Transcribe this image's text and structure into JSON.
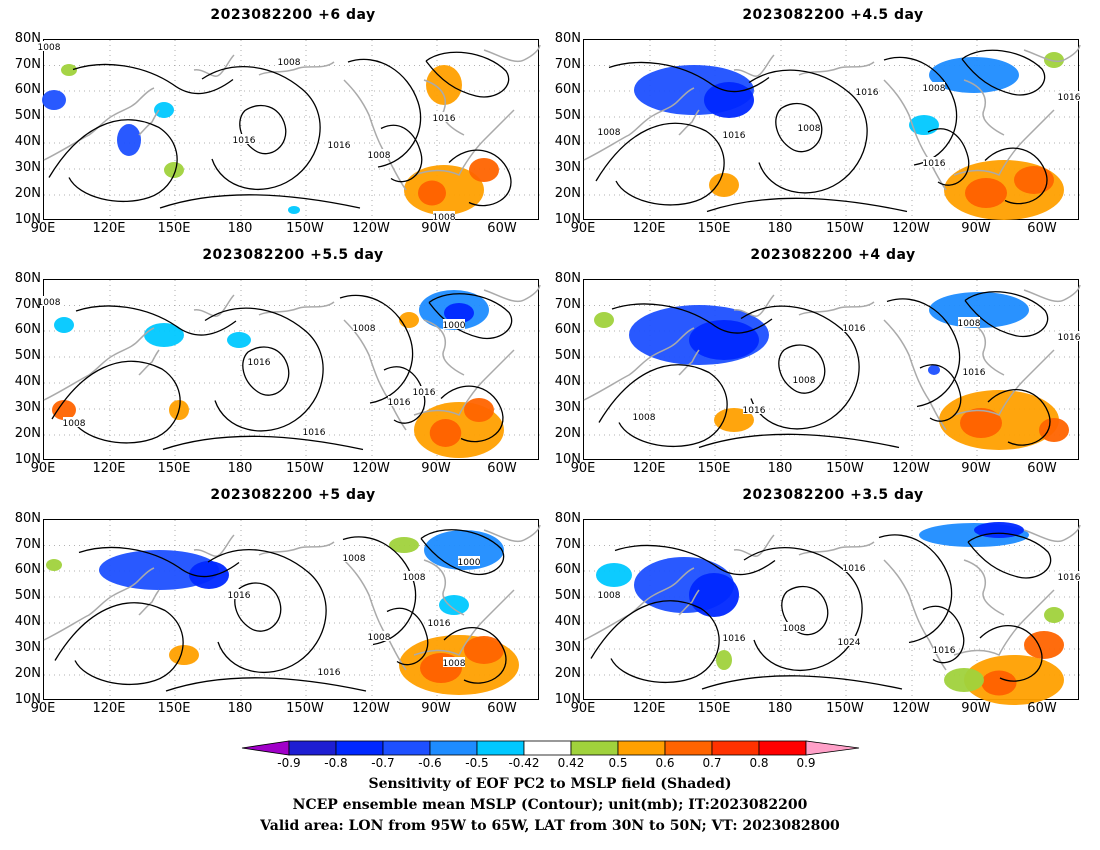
{
  "panels": [
    {
      "title": "2023082200 +6 day"
    },
    {
      "title": "2023082200 +4.5 day"
    },
    {
      "title": "2023082200 +5.5 day"
    },
    {
      "title": "2023082200 +4 day"
    },
    {
      "title": "2023082200 +5 day"
    },
    {
      "title": "2023082200 +3.5 day"
    }
  ],
  "axes": {
    "lat_labels": [
      "80N",
      "70N",
      "60N",
      "50N",
      "40N",
      "30N",
      "20N",
      "10N"
    ],
    "lon_labels": [
      "90E",
      "120E",
      "150E",
      "180",
      "150W",
      "120W",
      "90W",
      "60W"
    ]
  },
  "colorbar": {
    "labels": [
      "-0.9",
      "-0.8",
      "-0.7",
      "-0.6",
      "-0.5",
      "-0.42",
      "0.42",
      "0.5",
      "0.6",
      "0.7",
      "0.8",
      "0.9"
    ],
    "colors": [
      "#a000c8",
      "#1e1ed2",
      "#0028ff",
      "#1e50ff",
      "#1e8cff",
      "#00c8ff",
      "#ffffff",
      "#a0d23c",
      "#ffa000",
      "#ff6400",
      "#ff3200",
      "#ff0000",
      "#ffa0c8"
    ]
  },
  "footer": {
    "line1": "Sensitivity of EOF PC2 to MSLP field (Shaded)",
    "line2": "NCEP ensemble mean MSLP (Contour); unit(mb); IT:2023082200",
    "line3": "Valid area: LON from 95W to 65W, LAT from 30N to 50N; VT: 2023082800"
  },
  "contour_labels": [
    [
      "1008",
      "1008",
      "1016",
      "1016",
      "1008",
      "1016",
      "1008"
    ],
    [
      "1008",
      "1016",
      "1008",
      "1016",
      "1008",
      "1016",
      "1016"
    ],
    [
      "1008",
      "1008",
      "1016",
      "1000",
      "1008",
      "1016",
      "1016",
      "1016"
    ],
    [
      "1016",
      "1008",
      "1008",
      "1016",
      "1008",
      "1016",
      "1016"
    ],
    [
      "1016",
      "1008",
      "1008",
      "1000",
      "1016",
      "1008",
      "1016",
      "1008"
    ],
    [
      "1008",
      "1016",
      "1008",
      "1016",
      "1024",
      "1016",
      "1016"
    ]
  ]
}
